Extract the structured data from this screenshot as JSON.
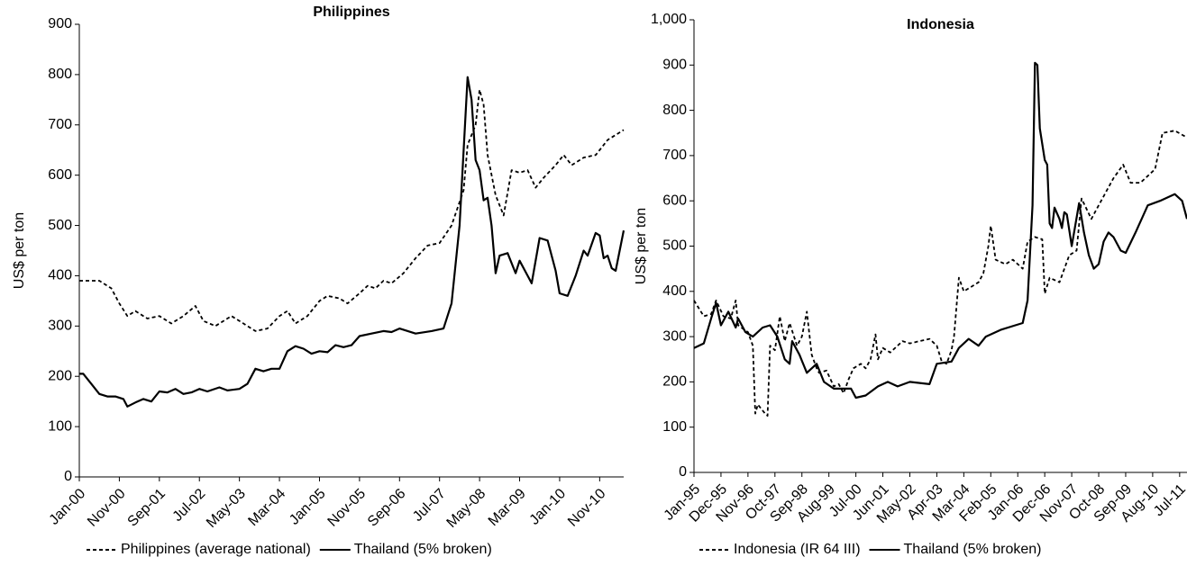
{
  "chart_data": [
    {
      "type": "line",
      "title": "Philippines",
      "ylabel": "US$ per ton",
      "xlim": [
        "Jan-00",
        "May-11"
      ],
      "xticks": [
        "Jan-00",
        "Nov-00",
        "Sep-01",
        "Jul-02",
        "May-03",
        "Mar-04",
        "Jan-05",
        "Nov-05",
        "Sep-06",
        "Jul-07",
        "May-08",
        "Mar-09",
        "Jan-10",
        "Nov-10"
      ],
      "ylim": [
        0,
        900
      ],
      "yticks": [
        0,
        100,
        200,
        300,
        400,
        500,
        600,
        700,
        800,
        900
      ],
      "legend": "bottom",
      "series": [
        {
          "name": "Philippines (average national)",
          "color": "#000000",
          "line_style": "dashed",
          "x": [
            "Jan-00",
            "Jun-00",
            "Sep-00",
            "Nov-00",
            "Jan-01",
            "Mar-01",
            "Jun-01",
            "Sep-01",
            "Dec-01",
            "Mar-02",
            "Jun-02",
            "Aug-02",
            "Nov-02",
            "Mar-03",
            "Jun-03",
            "Sep-03",
            "Dec-03",
            "Mar-04",
            "May-04",
            "Jul-04",
            "Oct-04",
            "Jan-05",
            "Mar-05",
            "Jun-05",
            "Aug-05",
            "Nov-05",
            "Jan-06",
            "Mar-06",
            "May-06",
            "Jul-06",
            "Oct-06",
            "Jan-07",
            "Apr-07",
            "Jul-07",
            "Oct-07",
            "Jan-08",
            "Feb-08",
            "Apr-08",
            "May-08",
            "Jun-08",
            "Jul-08",
            "Sep-08",
            "Nov-08",
            "Jan-09",
            "Mar-09",
            "May-09",
            "Jul-09",
            "Sep-09",
            "Dec-09",
            "Feb-10",
            "Apr-10",
            "Jul-10",
            "Oct-10",
            "Jan-11",
            "May-11"
          ],
          "values": [
            390,
            390,
            375,
            345,
            320,
            330,
            315,
            320,
            305,
            320,
            340,
            310,
            300,
            320,
            305,
            290,
            295,
            320,
            330,
            305,
            320,
            350,
            360,
            355,
            345,
            365,
            380,
            375,
            390,
            385,
            405,
            435,
            460,
            465,
            500,
            570,
            660,
            700,
            770,
            740,
            640,
            560,
            520,
            610,
            605,
            610,
            575,
            595,
            620,
            640,
            620,
            635,
            640,
            670,
            690
          ]
        },
        {
          "name": "Thailand (5% broken)",
          "color": "#000000",
          "line_style": "solid",
          "x": [
            "Jan-00",
            "Feb-00",
            "Apr-00",
            "Jun-00",
            "Aug-00",
            "Oct-00",
            "Dec-00",
            "Jan-01",
            "Mar-01",
            "May-01",
            "Jul-01",
            "Sep-01",
            "Nov-01",
            "Jan-02",
            "Mar-02",
            "May-02",
            "Jul-02",
            "Sep-02",
            "Dec-02",
            "Feb-03",
            "May-03",
            "Jul-03",
            "Sep-03",
            "Nov-03",
            "Jan-04",
            "Mar-04",
            "May-04",
            "Jul-04",
            "Sep-04",
            "Nov-04",
            "Jan-05",
            "Mar-05",
            "May-05",
            "Jul-05",
            "Sep-05",
            "Nov-05",
            "Feb-06",
            "May-06",
            "Jul-06",
            "Sep-06",
            "Jan-07",
            "May-07",
            "Aug-07",
            "Oct-07",
            "Dec-07",
            "Feb-08",
            "Mar-08",
            "Apr-08",
            "May-08",
            "Jun-08",
            "Jul-08",
            "Aug-08",
            "Sep-08",
            "Oct-08",
            "Dec-08",
            "Feb-09",
            "Mar-09",
            "May-09",
            "Jun-09",
            "Aug-09",
            "Oct-09",
            "Dec-09",
            "Jan-10",
            "Mar-10",
            "May-10",
            "Jul-10",
            "Aug-10",
            "Oct-10",
            "Nov-10",
            "Dec-10",
            "Jan-11",
            "Feb-11",
            "Mar-11",
            "May-11"
          ],
          "values": [
            205,
            205,
            185,
            165,
            160,
            160,
            155,
            140,
            148,
            155,
            150,
            170,
            168,
            175,
            165,
            168,
            175,
            170,
            178,
            172,
            175,
            185,
            215,
            210,
            215,
            215,
            250,
            260,
            255,
            245,
            250,
            248,
            262,
            258,
            262,
            280,
            285,
            290,
            288,
            295,
            285,
            290,
            295,
            345,
            500,
            795,
            750,
            630,
            610,
            550,
            555,
            500,
            405,
            440,
            445,
            405,
            430,
            400,
            385,
            475,
            470,
            410,
            365,
            360,
            400,
            450,
            440,
            485,
            480,
            435,
            440,
            415,
            410,
            490
          ]
        }
      ]
    },
    {
      "type": "line",
      "title": "Indonesia",
      "ylabel": "US$ per ton",
      "xlim": [
        "Jan-95",
        "Oct-11"
      ],
      "xticks": [
        "Jan-95",
        "Dec-95",
        "Nov-96",
        "Oct-97",
        "Sep-98",
        "Aug-99",
        "Jul-00",
        "Jun-01",
        "May-02",
        "Apr-03",
        "Mar-04",
        "Feb-05",
        "Jan-06",
        "Dec-06",
        "Nov-07",
        "Oct-08",
        "Sep-09",
        "Aug-10",
        "Jul-11"
      ],
      "ylim": [
        0,
        1000
      ],
      "yticks": [
        0,
        100,
        200,
        300,
        400,
        500,
        600,
        700,
        800,
        900,
        {
          "value": 1000,
          "label": "1,000"
        }
      ],
      "legend": "bottom",
      "series": [
        {
          "name": "Indonesia (IR 64 III)",
          "color": "#000000",
          "line_style": "dashed",
          "x": [
            "Jan-95",
            "May-95",
            "Aug-95",
            "Oct-95",
            "Jan-96",
            "Apr-96",
            "Jun-96",
            "Jul-96",
            "Nov-96",
            "Jan-97",
            "Feb-97",
            "Mar-97",
            "Jun-97",
            "Jul-97",
            "Aug-97",
            "Oct-97",
            "Dec-97",
            "Feb-98",
            "Apr-98",
            "Jul-98",
            "Sep-98",
            "Nov-98",
            "Jan-99",
            "Mar-99",
            "Apr-99",
            "Jul-99",
            "Oct-99",
            "Dec-99",
            "Feb-00",
            "Apr-00",
            "Jun-00",
            "Sep-00",
            "Nov-00",
            "Jan-01",
            "Mar-01",
            "Apr-01",
            "Jun-01",
            "Sep-01",
            "Dec-01",
            "Feb-02",
            "May-02",
            "Sep-02",
            "Jan-03",
            "Apr-03",
            "Jun-03",
            "Aug-03",
            "Oct-03",
            "Nov-03",
            "Jan-04",
            "Mar-04",
            "Sep-04",
            "Nov-04",
            "Jan-05",
            "Feb-05",
            "Apr-05",
            "Aug-05",
            "Nov-05",
            "Mar-06",
            "May-06",
            "Aug-06",
            "Nov-06",
            "Dec-06",
            "Feb-07",
            "Jun-07",
            "Oct-07",
            "Jan-08",
            "Mar-08",
            "Jul-08",
            "Oct-08",
            "Apr-09",
            "Aug-09",
            "Nov-09",
            "Mar-10",
            "Sep-10",
            "Dec-10",
            "May-11",
            "Oct-11"
          ],
          "values": [
            380,
            345,
            350,
            380,
            345,
            340,
            380,
            325,
            310,
            280,
            130,
            150,
            130,
            125,
            280,
            270,
            345,
            290,
            330,
            280,
            300,
            355,
            260,
            230,
            220,
            225,
            190,
            195,
            175,
            205,
            230,
            240,
            230,
            250,
            305,
            250,
            275,
            265,
            280,
            290,
            285,
            290,
            295,
            280,
            245,
            240,
            270,
            300,
            430,
            400,
            420,
            440,
            500,
            545,
            470,
            460,
            470,
            450,
            510,
            520,
            515,
            395,
            430,
            420,
            480,
            490,
            605,
            560,
            590,
            650,
            680,
            640,
            640,
            670,
            750,
            755,
            740
          ]
        },
        {
          "name": "Thailand (5% broken)",
          "color": "#000000",
          "line_style": "solid",
          "x": [
            "Jan-95",
            "May-95",
            "Aug-95",
            "Oct-95",
            "Dec-95",
            "Mar-96",
            "Jun-96",
            "Jul-96",
            "Oct-96",
            "Jan-97",
            "May-97",
            "Aug-97",
            "Nov-97",
            "Feb-98",
            "Apr-98",
            "May-98",
            "Aug-98",
            "Nov-98",
            "Mar-99",
            "Jun-99",
            "Oct-99",
            "May-00",
            "Jul-00",
            "Nov-00",
            "Apr-01",
            "Aug-01",
            "Dec-01",
            "May-02",
            "Jan-03",
            "Apr-03",
            "Oct-03",
            "Jan-04",
            "May-04",
            "Sep-04",
            "Dec-04",
            "Jun-05",
            "Dec-05",
            "Mar-06",
            "May-06",
            "Jul-06",
            "Aug-06",
            "Sep-06",
            "Oct-06",
            "Dec-06",
            "Jan-07",
            "Feb-07",
            "Mar-07",
            "Apr-07",
            "Jun-07",
            "Jul-07",
            "Aug-07",
            "Sep-07",
            "Nov-07",
            "Feb-08",
            "Apr-08",
            "Jun-08",
            "Aug-08",
            "Oct-08",
            "Dec-08",
            "Feb-09",
            "Apr-09",
            "Jul-09",
            "Sep-09",
            "Jan-10",
            "Jun-10",
            "Nov-10",
            "May-11",
            "Aug-11",
            "Oct-11"
          ],
          "values": [
            275,
            285,
            340,
            375,
            325,
            355,
            320,
            340,
            310,
            300,
            320,
            325,
            300,
            250,
            240,
            290,
            260,
            220,
            240,
            200,
            185,
            185,
            165,
            170,
            190,
            200,
            190,
            200,
            195,
            240,
            245,
            275,
            295,
            280,
            300,
            315,
            325,
            330,
            380,
            590,
            905,
            900,
            760,
            690,
            680,
            550,
            540,
            585,
            560,
            540,
            575,
            570,
            500,
            595,
            530,
            480,
            450,
            460,
            510,
            530,
            520,
            490,
            485,
            530,
            590,
            600,
            615,
            600,
            560
          ]
        }
      ]
    }
  ]
}
